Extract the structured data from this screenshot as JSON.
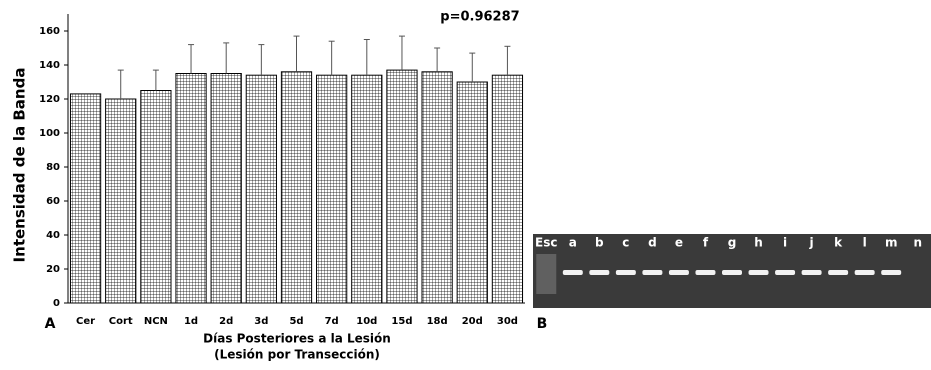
{
  "chart_data": {
    "type": "bar",
    "ylabel": "Intensidad de la Banda",
    "xlabel": [
      "Días Posteriores a la Lesión",
      "(Lesión por Transección)"
    ],
    "annotation": "p=0.96287",
    "panel_labels": [
      "A",
      "B"
    ],
    "categories": [
      "Cer",
      "Cort",
      "NCN",
      "1d",
      "2d",
      "3d",
      "5d",
      "7d",
      "10d",
      "15d",
      "18d",
      "20d",
      "30d"
    ],
    "values": [
      123,
      120,
      125,
      135,
      135,
      134,
      136,
      134,
      134,
      137,
      136,
      130,
      134
    ],
    "errors": [
      null,
      17,
      12,
      17,
      18,
      18,
      21,
      20,
      21,
      20,
      14,
      17,
      17
    ],
    "color": "#000000",
    "ylim": [
      0,
      170
    ],
    "yticks": [
      0,
      20,
      40,
      60,
      80,
      100,
      120,
      140,
      160
    ],
    "grid": false
  },
  "gel": {
    "lanes": [
      "Esc",
      "a",
      "b",
      "c",
      "d",
      "e",
      "f",
      "g",
      "h",
      "i",
      "j",
      "k",
      "l",
      "m",
      "n"
    ]
  }
}
